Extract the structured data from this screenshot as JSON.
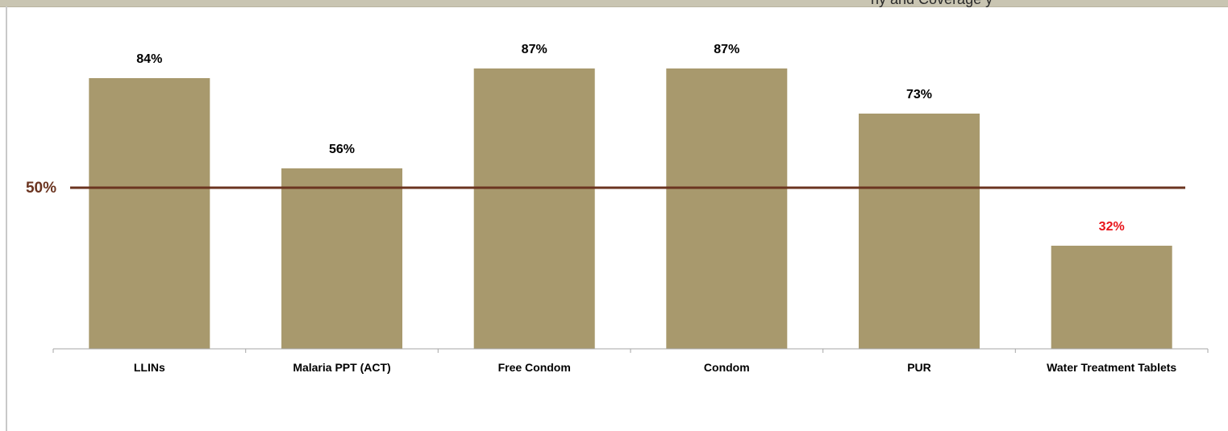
{
  "header": {
    "cropped_text": "hy and Coverage y"
  },
  "colors": {
    "bar": "#a8996d",
    "reference_line": "#6b3420",
    "reference_label": "#6b3420",
    "highlight_label": "#e8141a",
    "default_label": "#000000",
    "axis": "#a6a6a6",
    "top_band": "#c9c5b2"
  },
  "chart_data": {
    "type": "bar",
    "title": "",
    "xlabel": "",
    "ylabel": "",
    "categories": [
      "LLINs",
      "Malaria PPT (ACT)",
      "Free Condom",
      "Condom",
      "PUR",
      "Water Treatment Tablets"
    ],
    "values": [
      84,
      56,
      87,
      87,
      73,
      32
    ],
    "data_labels": [
      "84%",
      "56%",
      "87%",
      "87%",
      "73%",
      "32%"
    ],
    "highlighted": [
      false,
      false,
      false,
      false,
      false,
      true
    ],
    "ylim": [
      0,
      100
    ],
    "y_axis_visible": false,
    "grid": false,
    "legend": "none",
    "reference_line": {
      "value": 50,
      "label": "50%"
    }
  }
}
